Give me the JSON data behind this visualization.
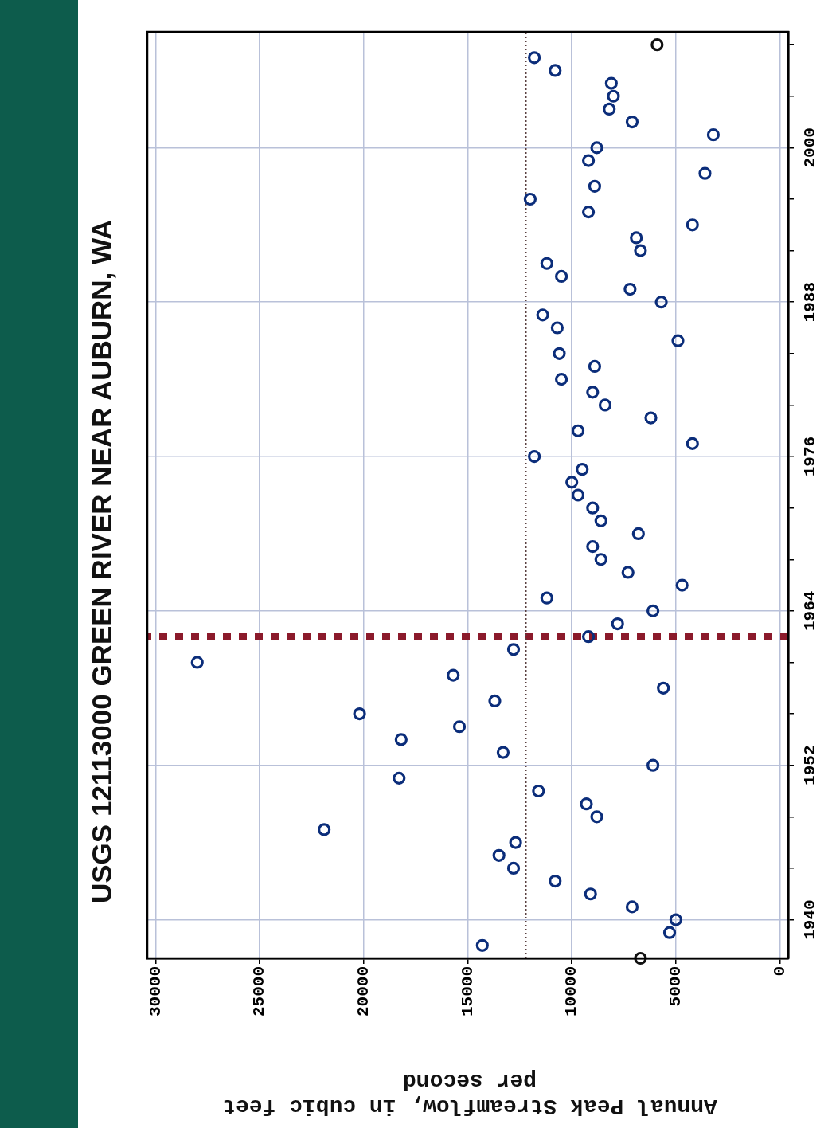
{
  "chart_data": {
    "type": "scatter",
    "orientation": "horizontal",
    "title": "USGS 12113000 GREEN RIVER NEAR AUBURN, WA",
    "xlabel": "Annual Peak Streamflow, in cubic feet per second",
    "x": [
      1937,
      1938,
      1939,
      1940,
      1941,
      1942,
      1943,
      1944,
      1945,
      1946,
      1947,
      1948,
      1949,
      1950,
      1951,
      1952,
      1953,
      1954,
      1955,
      1956,
      1957,
      1958,
      1959,
      1960,
      1961,
      1962,
      1963,
      1964,
      1965,
      1966,
      1967,
      1968,
      1969,
      1970,
      1971,
      1972,
      1973,
      1974,
      1975,
      1976,
      1977,
      1978,
      1979,
      1980,
      1981,
      1982,
      1983,
      1984,
      1985,
      1986,
      1987,
      1988,
      1989,
      1990,
      1991,
      1992,
      1993,
      1994,
      1995,
      1996,
      1997,
      1998,
      1999,
      2000,
      2001,
      2002,
      2003,
      2004,
      2005,
      2006,
      2007,
      2008
    ],
    "series": [
      {
        "color": "#0b2d7a",
        "colors": [
          "#111111",
          null,
          null,
          null,
          null,
          null,
          null,
          null,
          null,
          null,
          null,
          null,
          null,
          null,
          null,
          null,
          null,
          null,
          null,
          null,
          null,
          null,
          null,
          null,
          null,
          null,
          null,
          null,
          null,
          null,
          null,
          null,
          null,
          null,
          null,
          null,
          null,
          null,
          null,
          null,
          null,
          null,
          null,
          null,
          null,
          null,
          null,
          null,
          null,
          null,
          null,
          null,
          null,
          null,
          null,
          null,
          null,
          null,
          null,
          null,
          null,
          null,
          null,
          null,
          null,
          null,
          null,
          null,
          null,
          null,
          null,
          "#111111"
        ],
        "values": [
          6700,
          14300,
          5300,
          5000,
          7100,
          9100,
          10800,
          12800,
          13500,
          12700,
          21900,
          8800,
          9300,
          11600,
          18300,
          6100,
          13300,
          18200,
          15400,
          20200,
          13700,
          5600,
          15700,
          28000,
          12800,
          9200,
          7800,
          6100,
          11200,
          4700,
          7300,
          8600,
          9000,
          6800,
          8600,
          9000,
          9700,
          10000,
          9500,
          11800,
          4200,
          9700,
          6200,
          8400,
          9000,
          10500,
          8900,
          10600,
          4900,
          10700,
          11400,
          5700,
          7200,
          10500,
          11200,
          6700,
          6900,
          4200,
          9200,
          12000,
          8900,
          3600,
          9200,
          8800,
          3200,
          7100,
          8200,
          8000,
          8100,
          10800,
          11800,
          5900
        ]
      }
    ],
    "ylim": [
      1937,
      2009
    ],
    "yticks": [
      {
        "value": 1940,
        "label": "1940"
      },
      {
        "value": 1944,
        "label": null
      },
      {
        "value": 1948,
        "label": null
      },
      {
        "value": 1952,
        "label": "1952"
      },
      {
        "value": 1956,
        "label": null
      },
      {
        "value": 1960,
        "label": null
      },
      {
        "value": 1964,
        "label": "1964"
      },
      {
        "value": 1968,
        "label": null
      },
      {
        "value": 1972,
        "label": null
      },
      {
        "value": 1976,
        "label": "1976"
      },
      {
        "value": 1980,
        "label": null
      },
      {
        "value": 1984,
        "label": null
      },
      {
        "value": 1988,
        "label": "1988"
      },
      {
        "value": 1992,
        "label": null
      },
      {
        "value": 1996,
        "label": null
      },
      {
        "value": 2000,
        "label": "2000"
      },
      {
        "value": 2004,
        "label": null
      },
      {
        "value": 2008,
        "label": null
      }
    ],
    "xlim": [
      30400,
      -400
    ],
    "xticks": [
      0,
      5000,
      10000,
      15000,
      20000,
      25000,
      30000
    ],
    "ref_lines": [
      {
        "axis": "y",
        "value": 1962,
        "color": "#8b1a2b",
        "line_style": "dashed"
      },
      {
        "axis": "x",
        "value": 12200,
        "color": "#5a4040",
        "line_style": "dotted"
      }
    ],
    "grid": true,
    "marker": "circle"
  }
}
